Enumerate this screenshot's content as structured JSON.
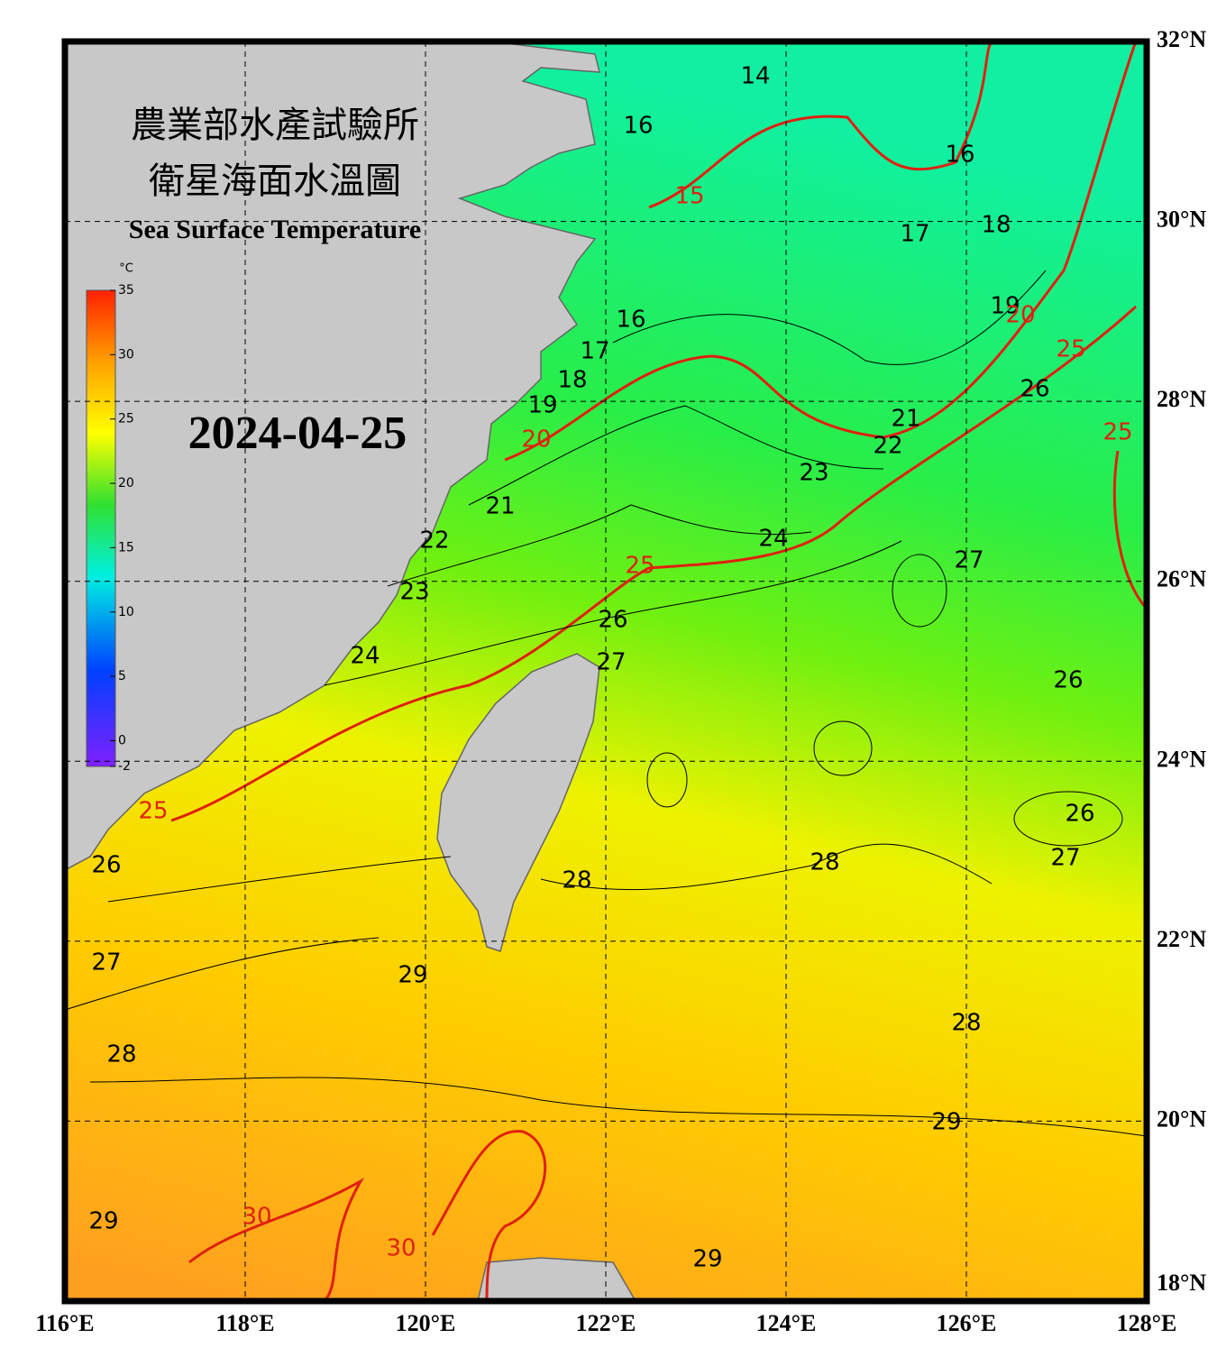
{
  "title_zh_1": "農業部水產試驗所",
  "title_zh_2": "衛星海面水溫圖",
  "title_en": "Sea Surface Temperature",
  "date": "2024-04-25",
  "colorbar": {
    "unit": "°C",
    "lim": [
      -2,
      35
    ],
    "ticks": [
      -2,
      0,
      5,
      10,
      15,
      20,
      25,
      30,
      35
    ]
  },
  "map": {
    "xlim": [
      116,
      128
    ],
    "ylim": [
      18,
      32
    ],
    "xticks": [
      {
        "value": 116,
        "label": "116°E"
      },
      {
        "value": 118,
        "label": "118°E"
      },
      {
        "value": 120,
        "label": "120°E"
      },
      {
        "value": 122,
        "label": "122°E"
      },
      {
        "value": 124,
        "label": "124°E"
      },
      {
        "value": 126,
        "label": "126°E"
      },
      {
        "value": 128,
        "label": "128°E"
      }
    ],
    "yticks": [
      {
        "value": 18,
        "label": "18°N"
      },
      {
        "value": 20,
        "label": "20°N"
      },
      {
        "value": 22,
        "label": "22°N"
      },
      {
        "value": 24,
        "label": "24°N"
      },
      {
        "value": 26,
        "label": "26°N"
      },
      {
        "value": 28,
        "label": "28°N"
      },
      {
        "value": 30,
        "label": "30°N"
      },
      {
        "value": 32,
        "label": "32°N"
      }
    ]
  },
  "contour_labels": [
    14,
    16,
    15,
    16,
    17,
    18,
    19,
    20,
    16,
    17,
    18,
    19,
    20,
    21,
    22,
    23,
    24,
    25,
    26,
    27,
    24,
    23,
    22,
    21,
    25,
    26,
    25,
    27,
    26,
    26,
    27,
    28,
    28,
    27,
    29,
    28,
    28,
    29,
    29,
    30,
    30,
    29,
    25,
    26
  ]
}
